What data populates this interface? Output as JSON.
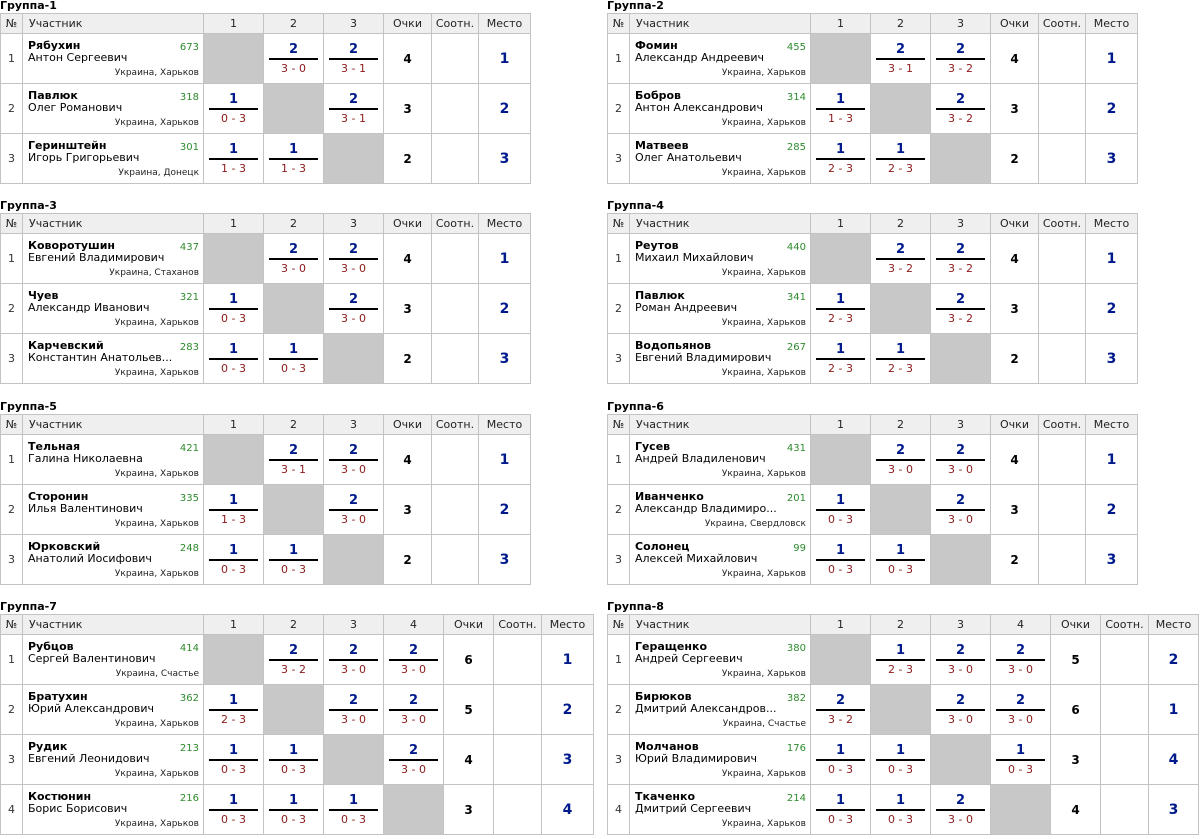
{
  "headers": {
    "num": "№",
    "participant": "Участник",
    "points": "Очки",
    "ratio": "Соотн.",
    "place": "Место"
  },
  "groups": [
    {
      "title": "Группа-1",
      "players": [
        {
          "num": "1",
          "surname": "Рябухин",
          "firstname": "Антон Сергеевич",
          "rating": "673",
          "location": "Украина, Харьков",
          "scores": [
            null,
            [
              "2",
              "3 - 0"
            ],
            [
              "2",
              "3 - 1"
            ]
          ],
          "points": "4",
          "ratio": "",
          "place": "1"
        },
        {
          "num": "2",
          "surname": "Павлюк",
          "firstname": "Олег Романович",
          "rating": "318",
          "location": "Украина, Харьков",
          "scores": [
            [
              "1",
              "0 - 3"
            ],
            null,
            [
              "2",
              "3 - 1"
            ]
          ],
          "points": "3",
          "ratio": "",
          "place": "2"
        },
        {
          "num": "3",
          "surname": "Геринштейн",
          "firstname": "Игорь Григорьевич",
          "rating": "301",
          "location": "Украина, Донецк",
          "scores": [
            [
              "1",
              "1 - 3"
            ],
            [
              "1",
              "1 - 3"
            ],
            null
          ],
          "points": "2",
          "ratio": "",
          "place": "3"
        }
      ]
    },
    {
      "title": "Группа-2",
      "players": [
        {
          "num": "1",
          "surname": "Фомин",
          "firstname": "Александр Андреевич",
          "rating": "455",
          "location": "Украина, Харьков",
          "scores": [
            null,
            [
              "2",
              "3 - 1"
            ],
            [
              "2",
              "3 - 2"
            ]
          ],
          "points": "4",
          "ratio": "",
          "place": "1"
        },
        {
          "num": "2",
          "surname": "Бобров",
          "firstname": "Антон Александрович",
          "rating": "314",
          "location": "Украина, Харьков",
          "scores": [
            [
              "1",
              "1 - 3"
            ],
            null,
            [
              "2",
              "3 - 2"
            ]
          ],
          "points": "3",
          "ratio": "",
          "place": "2"
        },
        {
          "num": "3",
          "surname": "Матвеев",
          "firstname": "Олег Анатольевич",
          "rating": "285",
          "location": "Украина, Харьков",
          "scores": [
            [
              "1",
              "2 - 3"
            ],
            [
              "1",
              "2 - 3"
            ],
            null
          ],
          "points": "2",
          "ratio": "",
          "place": "3"
        }
      ]
    },
    {
      "title": "Группа-3",
      "players": [
        {
          "num": "1",
          "surname": "Коворотушин",
          "firstname": "Евгений Владимирович",
          "rating": "437",
          "location": "Украина, Стаханов",
          "scores": [
            null,
            [
              "2",
              "3 - 0"
            ],
            [
              "2",
              "3 - 0"
            ]
          ],
          "points": "4",
          "ratio": "",
          "place": "1"
        },
        {
          "num": "2",
          "surname": "Чуев",
          "firstname": "Александр Иванович",
          "rating": "321",
          "location": "Украина, Харьков",
          "scores": [
            [
              "1",
              "0 - 3"
            ],
            null,
            [
              "2",
              "3 - 0"
            ]
          ],
          "points": "3",
          "ratio": "",
          "place": "2"
        },
        {
          "num": "3",
          "surname": "Карчевский",
          "firstname": "Константин Анатольев...",
          "rating": "283",
          "location": "Украина, Харьков",
          "scores": [
            [
              "1",
              "0 - 3"
            ],
            [
              "1",
              "0 - 3"
            ],
            null
          ],
          "points": "2",
          "ratio": "",
          "place": "3"
        }
      ]
    },
    {
      "title": "Группа-4",
      "players": [
        {
          "num": "1",
          "surname": "Реутов",
          "firstname": "Михаил Михайлович",
          "rating": "440",
          "location": "Украина, Харьков",
          "scores": [
            null,
            [
              "2",
              "3 - 2"
            ],
            [
              "2",
              "3 - 2"
            ]
          ],
          "points": "4",
          "ratio": "",
          "place": "1"
        },
        {
          "num": "2",
          "surname": "Павлюк",
          "firstname": "Роман Андреевич",
          "rating": "341",
          "location": "Украина, Харьков",
          "scores": [
            [
              "1",
              "2 - 3"
            ],
            null,
            [
              "2",
              "3 - 2"
            ]
          ],
          "points": "3",
          "ratio": "",
          "place": "2"
        },
        {
          "num": "3",
          "surname": "Водопьянов",
          "firstname": "Евгений Владимирович",
          "rating": "267",
          "location": "Украина, Харьков",
          "scores": [
            [
              "1",
              "2 - 3"
            ],
            [
              "1",
              "2 - 3"
            ],
            null
          ],
          "points": "2",
          "ratio": "",
          "place": "3"
        }
      ]
    },
    {
      "title": "Группа-5",
      "players": [
        {
          "num": "1",
          "surname": "Тельная",
          "firstname": "Галина Николаевна",
          "rating": "421",
          "location": "Украина, Харьков",
          "scores": [
            null,
            [
              "2",
              "3 - 1"
            ],
            [
              "2",
              "3 - 0"
            ]
          ],
          "points": "4",
          "ratio": "",
          "place": "1"
        },
        {
          "num": "2",
          "surname": "Сторонин",
          "firstname": "Илья Валентинович",
          "rating": "335",
          "location": "Украина, Харьков",
          "scores": [
            [
              "1",
              "1 - 3"
            ],
            null,
            [
              "2",
              "3 - 0"
            ]
          ],
          "points": "3",
          "ratio": "",
          "place": "2"
        },
        {
          "num": "3",
          "surname": "Юрковский",
          "firstname": "Анатолий Иосифович",
          "rating": "248",
          "location": "Украина, Харьков",
          "scores": [
            [
              "1",
              "0 - 3"
            ],
            [
              "1",
              "0 - 3"
            ],
            null
          ],
          "points": "2",
          "ratio": "",
          "place": "3"
        }
      ]
    },
    {
      "title": "Группа-6",
      "players": [
        {
          "num": "1",
          "surname": "Гусев",
          "firstname": "Андрей Владиленович",
          "rating": "431",
          "location": "Украина, Харьков",
          "scores": [
            null,
            [
              "2",
              "3 - 0"
            ],
            [
              "2",
              "3 - 0"
            ]
          ],
          "points": "4",
          "ratio": "",
          "place": "1"
        },
        {
          "num": "2",
          "surname": "Иванченко",
          "firstname": "Александр Владимиро...",
          "rating": "201",
          "location": "Украина, Свердловск",
          "scores": [
            [
              "1",
              "0 - 3"
            ],
            null,
            [
              "2",
              "3 - 0"
            ]
          ],
          "points": "3",
          "ratio": "",
          "place": "2"
        },
        {
          "num": "3",
          "surname": "Солонец",
          "firstname": "Алексей Михайлович",
          "rating": "99",
          "location": "Украина, Харьков",
          "scores": [
            [
              "1",
              "0 - 3"
            ],
            [
              "1",
              "0 - 3"
            ],
            null
          ],
          "points": "2",
          "ratio": "",
          "place": "3"
        }
      ]
    },
    {
      "title": "Группа-7",
      "players": [
        {
          "num": "1",
          "surname": "Рубцов",
          "firstname": "Сергей Валентинович",
          "rating": "414",
          "location": "Украина, Счастье",
          "scores": [
            null,
            [
              "2",
              "3 - 2"
            ],
            [
              "2",
              "3 - 0"
            ],
            [
              "2",
              "3 - 0"
            ]
          ],
          "points": "6",
          "ratio": "",
          "place": "1"
        },
        {
          "num": "2",
          "surname": "Братухин",
          "firstname": "Юрий Александрович",
          "rating": "362",
          "location": "Украина, Харьков",
          "scores": [
            [
              "1",
              "2 - 3"
            ],
            null,
            [
              "2",
              "3 - 0"
            ],
            [
              "2",
              "3 - 0"
            ]
          ],
          "points": "5",
          "ratio": "",
          "place": "2"
        },
        {
          "num": "3",
          "surname": "Рудик",
          "firstname": "Евгений Леонидович",
          "rating": "213",
          "location": "Украина, Харьков",
          "scores": [
            [
              "1",
              "0 - 3"
            ],
            [
              "1",
              "0 - 3"
            ],
            null,
            [
              "2",
              "3 - 0"
            ]
          ],
          "points": "4",
          "ratio": "",
          "place": "3"
        },
        {
          "num": "4",
          "surname": "Костюнин",
          "firstname": "Борис Борисович",
          "rating": "216",
          "location": "Украина, Харьков",
          "scores": [
            [
              "1",
              "0 - 3"
            ],
            [
              "1",
              "0 - 3"
            ],
            [
              "1",
              "0 - 3"
            ],
            null
          ],
          "points": "3",
          "ratio": "",
          "place": "4"
        }
      ]
    },
    {
      "title": "Группа-8",
      "players": [
        {
          "num": "1",
          "surname": "Геращенко",
          "firstname": "Андрей Сергеевич",
          "rating": "380",
          "location": "Украина, Харьков",
          "scores": [
            null,
            [
              "1",
              "2 - 3"
            ],
            [
              "2",
              "3 - 0"
            ],
            [
              "2",
              "3 - 0"
            ]
          ],
          "points": "5",
          "ratio": "",
          "place": "2"
        },
        {
          "num": "2",
          "surname": "Бирюков",
          "firstname": "Дмитрий Александров...",
          "rating": "382",
          "location": "Украина, Счастье",
          "scores": [
            [
              "2",
              "3 - 2"
            ],
            null,
            [
              "2",
              "3 - 0"
            ],
            [
              "2",
              "3 - 0"
            ]
          ],
          "points": "6",
          "ratio": "",
          "place": "1"
        },
        {
          "num": "3",
          "surname": "Молчанов",
          "firstname": "Юрий Владимирович",
          "rating": "176",
          "location": "Украина, Харьков",
          "scores": [
            [
              "1",
              "0 - 3"
            ],
            [
              "1",
              "0 - 3"
            ],
            null,
            [
              "1",
              "0 - 3"
            ]
          ],
          "points": "3",
          "ratio": "",
          "place": "4"
        },
        {
          "num": "4",
          "surname": "Ткаченко",
          "firstname": "Дмитрий Сергеевич",
          "rating": "214",
          "location": "Украина, Харьков",
          "scores": [
            [
              "1",
              "0 - 3"
            ],
            [
              "1",
              "0 - 3"
            ],
            [
              "2",
              "3 - 0"
            ],
            null
          ],
          "points": "4",
          "ratio": "",
          "place": "3"
        }
      ]
    }
  ]
}
